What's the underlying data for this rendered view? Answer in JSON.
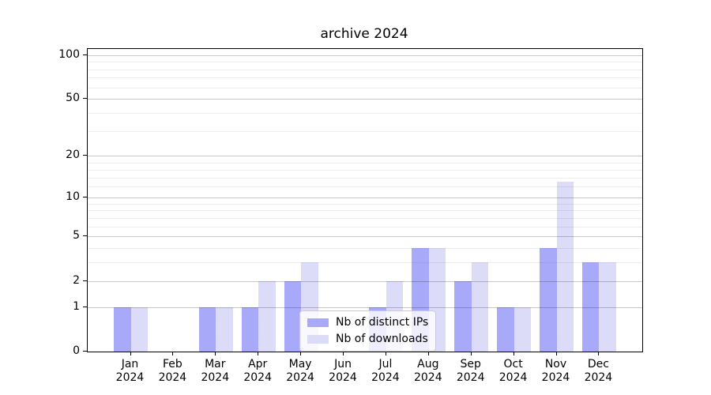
{
  "title": "archive 2024",
  "chart_data": {
    "type": "bar",
    "title": "archive 2024",
    "categories": [
      "Jan",
      "Feb",
      "Mar",
      "Apr",
      "May",
      "Jun",
      "Jul",
      "Aug",
      "Sep",
      "Oct",
      "Nov",
      "Dec"
    ],
    "category_year": "2024",
    "series": [
      {
        "name": "Nb of distinct IPs",
        "color": "#a9a9fa",
        "values": [
          1,
          0,
          1,
          1,
          2,
          0,
          1,
          4,
          2,
          1,
          4,
          3
        ]
      },
      {
        "name": "Nb of downloads",
        "color": "#dcdcf8",
        "values": [
          1,
          0,
          1,
          2,
          3,
          0,
          2,
          4,
          3,
          1,
          13,
          3
        ]
      }
    ],
    "xlabel": "",
    "ylabel": "",
    "y_scale": "log1p",
    "y_ticks": [
      0,
      1,
      2,
      5,
      10,
      20,
      50,
      100
    ],
    "y_minor_ticks": [
      3,
      4,
      6,
      7,
      8,
      9,
      12,
      14,
      16,
      18,
      30,
      40,
      60,
      70,
      80,
      90
    ],
    "ylim": [
      0,
      111
    ],
    "grid": true,
    "legend_position": "lower center"
  },
  "colors": {
    "bar_distinct_ips": "#a9a9fa",
    "bar_downloads": "#dcdcf8",
    "major_grid": "#c6c6c6",
    "minor_grid": "#ededed",
    "spine": "#000000",
    "legend_border": "#cccccc",
    "background": "#ffffff"
  }
}
